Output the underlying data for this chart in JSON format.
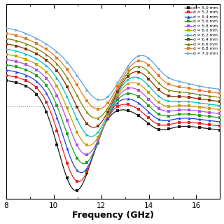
{
  "title": "",
  "xlabel": "Frequency (GHz)",
  "xmin": 8,
  "xmax": 17,
  "series": [
    {
      "label": "d = 5.0 mm",
      "color": "#1a1a1a",
      "marker": "s",
      "d": 5.0,
      "t": 0.0
    },
    {
      "label": "d = 5.2 mm",
      "color": "#e8201a",
      "marker": "s",
      "d": 5.2,
      "t": 0.1
    },
    {
      "label": "d = 5.4 mm",
      "color": "#1a3de8",
      "marker": "^",
      "d": 5.4,
      "t": 0.2
    },
    {
      "label": "d = 5.6 mm",
      "color": "#22a022",
      "marker": "s",
      "d": 5.6,
      "t": 0.3
    },
    {
      "label": "d = 5.8 mm",
      "color": "#b050e0",
      "marker": "s",
      "d": 5.8,
      "t": 0.4
    },
    {
      "label": "d = 6.0 mm",
      "color": "#c8a000",
      "marker": "s",
      "d": 6.0,
      "t": 0.5
    },
    {
      "label": "d = 6.2 mm",
      "color": "#00c0c0",
      "marker": ">",
      "d": 6.2,
      "t": 0.6
    },
    {
      "label": "d = 6.4 mm",
      "color": "#8b3000",
      "marker": "s",
      "d": 6.4,
      "t": 0.7
    },
    {
      "label": "d = 6.6 mm",
      "color": "#808000",
      "marker": "^",
      "d": 6.6,
      "t": 0.8
    },
    {
      "label": "d = 6.8 mm",
      "color": "#e87820",
      "marker": "s",
      "d": 6.8,
      "t": 0.9
    },
    {
      "label": "d = 7.0 mm",
      "color": "#60a0e0",
      "marker": ">",
      "d": 7.0,
      "t": 1.0
    }
  ],
  "background_color": "#ffffff"
}
